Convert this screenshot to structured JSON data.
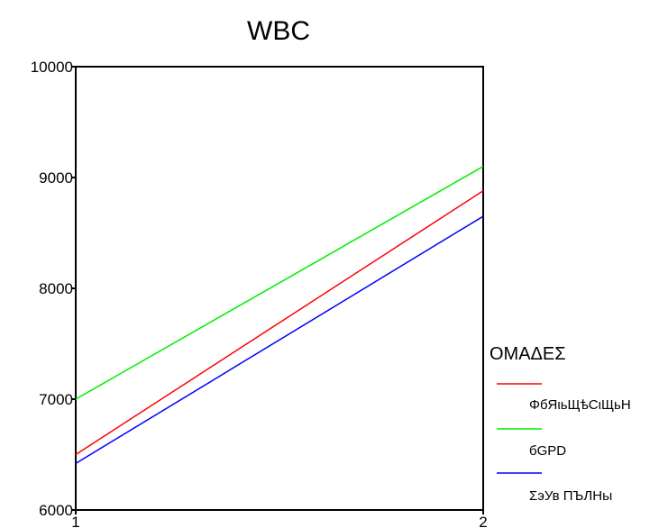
{
  "chart_data": {
    "type": "line",
    "title": "WBC",
    "xlabel": "",
    "ylabel": "",
    "categories": [
      "1",
      "2"
    ],
    "x": [
      1,
      2
    ],
    "xlim": [
      1,
      2
    ],
    "ylim": [
      6000,
      10000
    ],
    "y_ticks": [
      "10000",
      "9000",
      "8000",
      "7000",
      "6000"
    ],
    "x_ticks": [
      "1",
      "2"
    ],
    "grid": false,
    "legend": {
      "title": "ΟΜΑΔΕΣ",
      "placement": "right"
    },
    "series": [
      {
        "name": "ΦбЯιьЩѣСιЩьН",
        "color": "#ff0000",
        "values": [
          6500,
          8880
        ]
      },
      {
        "name": "бGPD",
        "color": "#00ee00",
        "values": [
          7000,
          9100
        ]
      },
      {
        "name": "ΣэУв ПЪЛНьι",
        "color": "#0000ff",
        "values": [
          6420,
          8650
        ]
      }
    ]
  }
}
